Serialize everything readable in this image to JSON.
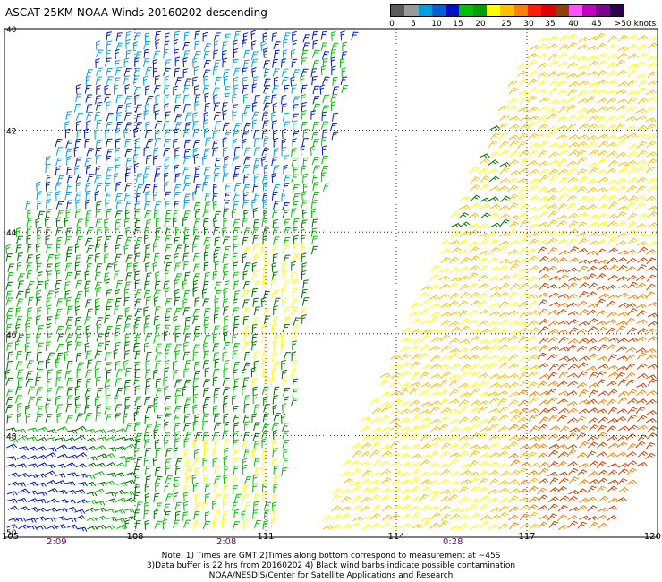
{
  "title": "ASCAT 25KM NOAA Winds 20160202 descending",
  "legend": {
    "colors": [
      "#5a5a5a",
      "#9a9a9a",
      "#00a0e0",
      "#0060d0",
      "#0010c0",
      "#00c000",
      "#00a000",
      "#ffff00",
      "#ffc000",
      "#ff8000",
      "#ff2000",
      "#e00000",
      "#904000",
      "#ff50ff",
      "#c000c0",
      "#800090",
      "#300050"
    ],
    "labels": [
      "0",
      "5",
      "10",
      "15",
      "20",
      "25",
      "30",
      "35",
      "40",
      "45",
      ">50 knots"
    ],
    "label_values": [
      0,
      5,
      10,
      15,
      20,
      25,
      30,
      35,
      40,
      45,
      50
    ]
  },
  "axes": {
    "lon_ticks": [
      "105",
      "108",
      "111",
      "114",
      "117",
      "120"
    ],
    "lat_ticks": [
      "40",
      "42",
      "44",
      "46",
      "48",
      "50"
    ],
    "lon_range": [
      105,
      120
    ],
    "lat_range": [
      40,
      50
    ]
  },
  "time_labels": [
    {
      "text": "2:09",
      "lon": 106.2
    },
    {
      "text": "2:08",
      "lon": 110.1
    },
    {
      "text": "0:28",
      "lon": 115.3
    }
  ],
  "swaths": [
    {
      "name": "west-swath",
      "corners": [
        [
          107.2,
          40.1
        ],
        [
          113.0,
          40.1
        ],
        [
          111.9,
          45.4
        ],
        [
          111.2,
          50.0
        ],
        [
          105.0,
          50.0
        ],
        [
          105.0,
          44.5
        ]
      ]
    },
    {
      "name": "east-swath",
      "corners": [
        [
          117.2,
          40.1
        ],
        [
          120.0,
          40.1
        ],
        [
          120.0,
          48.2
        ],
        [
          118.6,
          50.0
        ],
        [
          112.1,
          50.0
        ],
        [
          112.9,
          48.3
        ],
        [
          116.7,
          40.8
        ]
      ]
    }
  ],
  "wind_field_palette": {
    "blue": "#0018c8",
    "light-blue": "#00a0e8",
    "green": "#00c000",
    "dark-green": "#007000",
    "yellow": "#ffff00",
    "gold": "#ffc000",
    "orange": "#ff8000",
    "dark-orange": "#d04000",
    "black": "#000000"
  },
  "notes": [
    "Note: 1) Times are GMT 2)Times along bottom correspond to measurement at ~45S",
    "3)Data buffer is 22 hrs from 20160202 4) Black wind barbs indicate possible contamination",
    "NOAA/NESDIS/Center for Satellite Applications and Research"
  ]
}
